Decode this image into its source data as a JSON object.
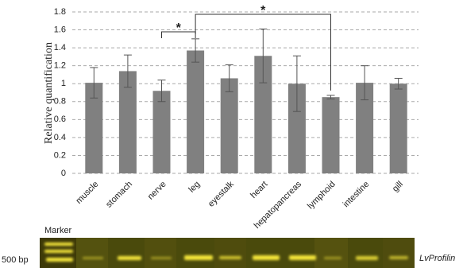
{
  "chart_data": {
    "type": "bar",
    "y_label": "Relative quantification",
    "categories": [
      "muscle",
      "stomach",
      "nerve",
      "leg",
      "eyestalk",
      "heart",
      "hepatopancreas",
      "lymphoid",
      "intestine",
      "gill"
    ],
    "values": [
      1.01,
      1.14,
      0.92,
      1.37,
      1.06,
      1.31,
      1.0,
      0.85,
      1.01,
      1.0
    ],
    "errors": [
      0.17,
      0.18,
      0.12,
      0.13,
      0.15,
      0.3,
      0.31,
      0.02,
      0.19,
      0.06
    ],
    "color": "#808080",
    "ylim": [
      0,
      1.8
    ],
    "yticks": [
      0,
      0.2,
      0.4,
      0.6,
      0.8,
      1,
      1.2,
      1.4,
      1.6,
      1.8
    ],
    "grid": true,
    "annotations": [
      {
        "text": "*",
        "between": [
          "nerve",
          "leg"
        ]
      },
      {
        "text": "*",
        "between": [
          "leg",
          "lymphoid"
        ]
      }
    ]
  },
  "gel": {
    "marker_label": "Marker",
    "size_label": "500 bp",
    "gene_label": "LvProfilin"
  }
}
